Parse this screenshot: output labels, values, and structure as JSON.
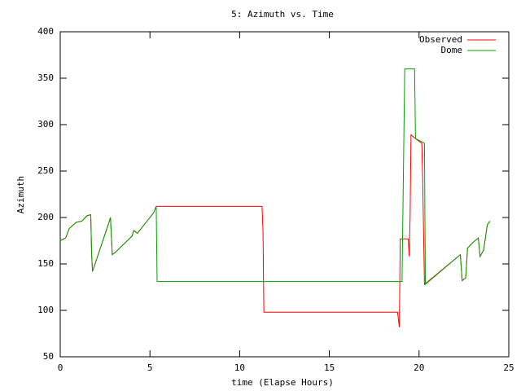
{
  "chart_data": {
    "type": "line",
    "title": "5: Azimuth vs. Time",
    "x_label": "time (Elapse Hours)",
    "y_label": "Azimuth",
    "xlim": [
      0,
      25
    ],
    "xticks": [
      0,
      5,
      10,
      15,
      20,
      25
    ],
    "ylim": [
      50,
      400
    ],
    "yticks": [
      50,
      100,
      150,
      200,
      250,
      300,
      350,
      400
    ],
    "grid": false,
    "legend": "top-right",
    "series": [
      {
        "name": "Observed",
        "color": "#ff0000",
        "x": [
          0,
          0.3,
          0.5,
          0.9,
          1.2,
          1.5,
          1.7,
          1.75,
          1.8,
          2.72,
          2.8,
          2.9,
          3.1,
          4.0,
          4.1,
          4.3,
          5.0,
          5.2,
          5.35,
          11.25,
          11.3,
          11.35,
          18.8,
          18.85,
          18.9,
          18.95,
          19.4,
          19.45,
          19.5,
          19.55,
          19.8,
          20.0,
          20.15,
          20.2,
          20.3,
          22.3,
          22.4,
          22.6,
          22.7,
          23.0,
          23.3,
          23.4,
          23.6,
          23.8,
          23.95
        ],
        "values": [
          175,
          178,
          188,
          195,
          196,
          202,
          203,
          160,
          142,
          195,
          200,
          160,
          163,
          180,
          186,
          183,
          200,
          205,
          212,
          212,
          185,
          98,
          98,
          90,
          82,
          177,
          177,
          158,
          200,
          289,
          285,
          282,
          280,
          242,
          128,
          160,
          132,
          135,
          167,
          173,
          178,
          158,
          165,
          192,
          196
        ]
      },
      {
        "name": "Dome",
        "color": "#00a000",
        "x": [
          0,
          0.3,
          0.5,
          0.9,
          1.2,
          1.5,
          1.7,
          1.75,
          1.8,
          2.72,
          2.8,
          2.9,
          3.1,
          4.0,
          4.1,
          4.3,
          5.0,
          5.2,
          5.35,
          5.4,
          19.05,
          19.2,
          19.75,
          19.8,
          20.3,
          20.35,
          22.3,
          22.4,
          22.6,
          22.7,
          23.0,
          23.3,
          23.4,
          23.6,
          23.8,
          23.95
        ],
        "values": [
          175,
          178,
          188,
          195,
          196,
          202,
          203,
          160,
          142,
          195,
          200,
          160,
          163,
          180,
          186,
          183,
          200,
          205,
          212,
          131,
          131,
          360,
          360,
          285,
          280,
          128,
          160,
          132,
          135,
          167,
          173,
          178,
          158,
          165,
          192,
          196
        ]
      }
    ]
  }
}
